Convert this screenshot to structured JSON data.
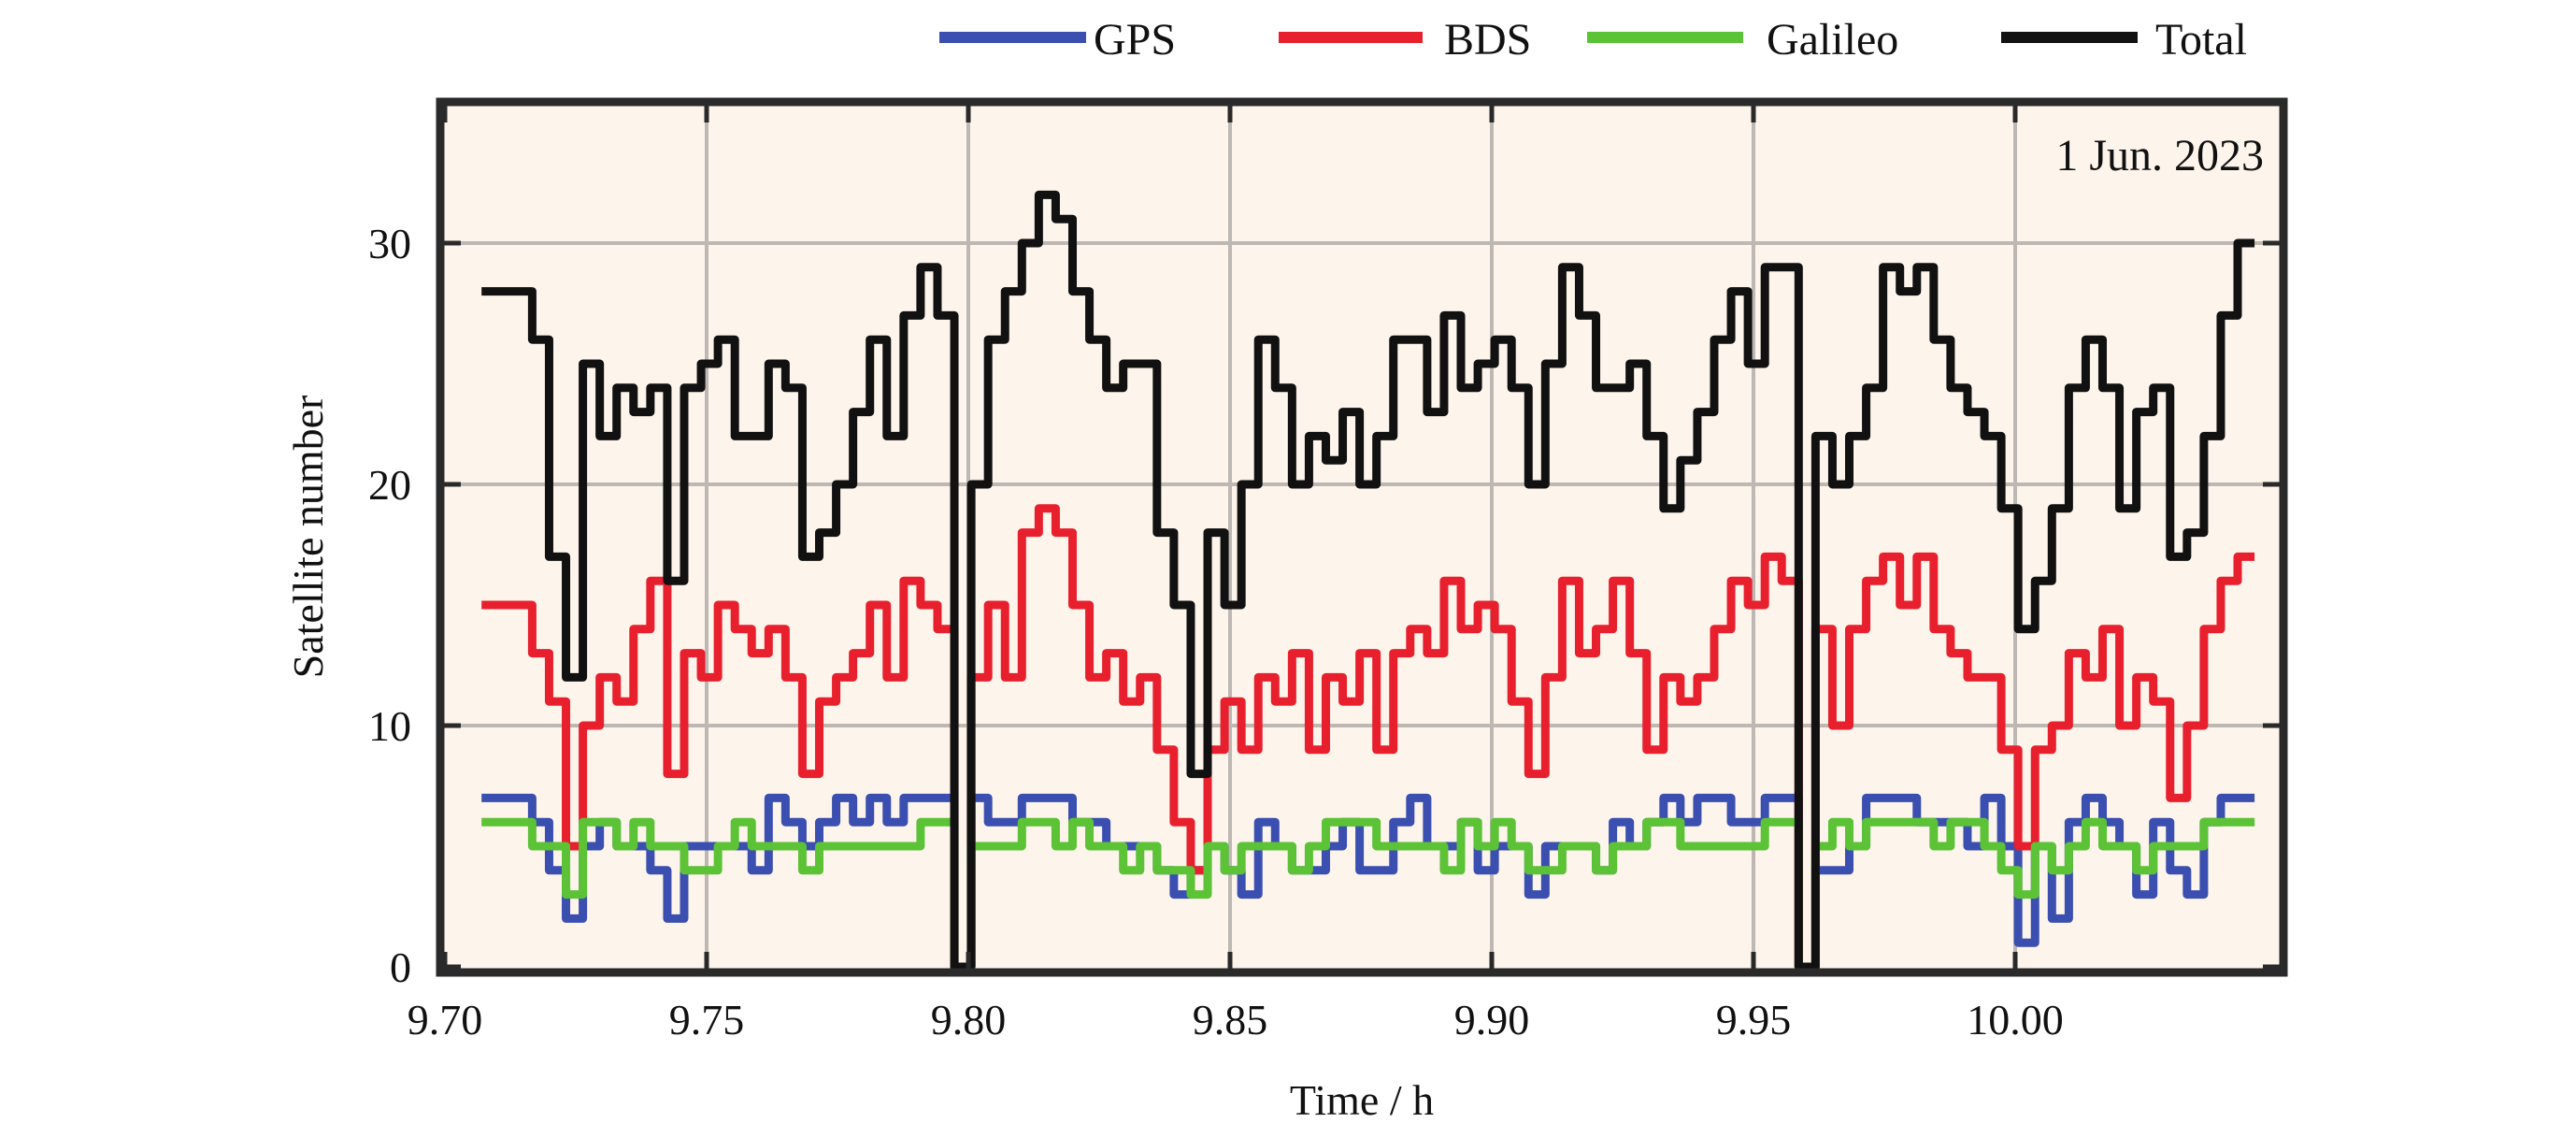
{
  "chart_data": {
    "type": "line",
    "title": "",
    "annotation": "1 Jun. 2023",
    "xlabel": "Time / h",
    "ylabel": "Satellite number",
    "xlim": [
      9.7,
      10.051
    ],
    "ylim": [
      0,
      35.8
    ],
    "xticks": [
      "9.70",
      "9.75",
      "9.80",
      "9.85",
      "9.90",
      "9.95",
      "10.00"
    ],
    "xtick_values": [
      9.7,
      9.75,
      9.8,
      9.85,
      9.9,
      9.95,
      10.0
    ],
    "yticks": [
      "0",
      "10",
      "20",
      "30"
    ],
    "ytick_values": [
      0,
      10,
      20,
      30
    ],
    "grid": true,
    "legend_placement": "top, outside plot",
    "x_start": 9.707,
    "x_step": 0.003226,
    "series": [
      {
        "name": "GPS",
        "color": "#3a4fb0",
        "values": [
          7,
          7,
          7,
          6,
          4,
          2,
          5,
          6,
          5,
          5,
          4,
          2,
          5,
          5,
          5,
          5,
          4,
          7,
          6,
          5,
          6,
          7,
          6,
          7,
          6,
          7,
          7,
          7,
          0,
          7,
          6,
          6,
          7,
          7,
          7,
          6,
          6,
          5,
          5,
          5,
          4,
          3,
          4,
          5,
          4,
          3,
          6,
          5,
          4,
          4,
          5,
          6,
          4,
          4,
          6,
          7,
          5,
          5,
          6,
          4,
          5,
          5,
          3,
          5,
          5,
          5,
          4,
          6,
          5,
          6,
          7,
          6,
          7,
          7,
          6,
          6,
          7,
          7,
          0,
          4,
          4,
          5,
          7,
          7,
          7,
          6,
          6,
          6,
          5,
          7,
          5,
          1,
          5,
          2,
          6,
          7,
          6,
          5,
          3,
          6,
          4,
          3,
          6,
          7,
          7,
          7
        ]
      },
      {
        "name": "BDS",
        "color": "#e8202e",
        "values": [
          15,
          15,
          15,
          13,
          11,
          5,
          10,
          12,
          11,
          14,
          16,
          8,
          13,
          12,
          15,
          14,
          13,
          14,
          12,
          8,
          11,
          12,
          13,
          15,
          12,
          16,
          15,
          14,
          0,
          12,
          15,
          12,
          18,
          19,
          18,
          15,
          12,
          13,
          11,
          12,
          9,
          6,
          4,
          9,
          11,
          9,
          12,
          11,
          13,
          9,
          12,
          11,
          13,
          9,
          13,
          14,
          13,
          16,
          14,
          15,
          14,
          11,
          8,
          12,
          16,
          13,
          14,
          16,
          13,
          9,
          12,
          11,
          12,
          14,
          16,
          15,
          17,
          16,
          0,
          14,
          10,
          14,
          16,
          17,
          15,
          17,
          14,
          13,
          12,
          12,
          9,
          5,
          9,
          10,
          13,
          12,
          14,
          10,
          12,
          11,
          7,
          10,
          14,
          16,
          17,
          17
        ]
      },
      {
        "name": "Galileo",
        "color": "#5cc236",
        "values": [
          6,
          6,
          6,
          5,
          5,
          3,
          6,
          6,
          5,
          6,
          5,
          5,
          4,
          4,
          5,
          6,
          5,
          5,
          5,
          4,
          5,
          5,
          5,
          5,
          5,
          5,
          6,
          6,
          0,
          5,
          5,
          5,
          6,
          6,
          5,
          6,
          5,
          5,
          4,
          5,
          4,
          4,
          3,
          5,
          4,
          5,
          5,
          5,
          4,
          5,
          6,
          6,
          6,
          5,
          5,
          5,
          5,
          4,
          6,
          5,
          6,
          5,
          4,
          4,
          5,
          5,
          4,
          5,
          5,
          6,
          6,
          5,
          5,
          5,
          5,
          5,
          6,
          6,
          0,
          5,
          6,
          5,
          6,
          6,
          6,
          6,
          5,
          6,
          6,
          5,
          4,
          3,
          5,
          4,
          5,
          6,
          5,
          5,
          4,
          5,
          5,
          5,
          6,
          6,
          6,
          6
        ]
      },
      {
        "name": "Total",
        "color": "#111111",
        "values": [
          28,
          28,
          28,
          26,
          17,
          12,
          25,
          22,
          24,
          23,
          24,
          16,
          24,
          25,
          26,
          22,
          22,
          25,
          24,
          17,
          18,
          20,
          23,
          26,
          22,
          27,
          29,
          27,
          0,
          20,
          26,
          28,
          30,
          32,
          31,
          28,
          26,
          24,
          25,
          25,
          18,
          15,
          8,
          18,
          15,
          20,
          26,
          24,
          20,
          22,
          21,
          23,
          20,
          22,
          26,
          26,
          23,
          27,
          24,
          25,
          26,
          24,
          20,
          25,
          29,
          27,
          24,
          24,
          25,
          22,
          19,
          21,
          23,
          26,
          28,
          25,
          29,
          29,
          0,
          22,
          20,
          22,
          24,
          29,
          28,
          29,
          26,
          24,
          23,
          22,
          19,
          14,
          16,
          19,
          24,
          26,
          24,
          19,
          23,
          24,
          17,
          18,
          22,
          27,
          30,
          30
        ]
      }
    ]
  }
}
